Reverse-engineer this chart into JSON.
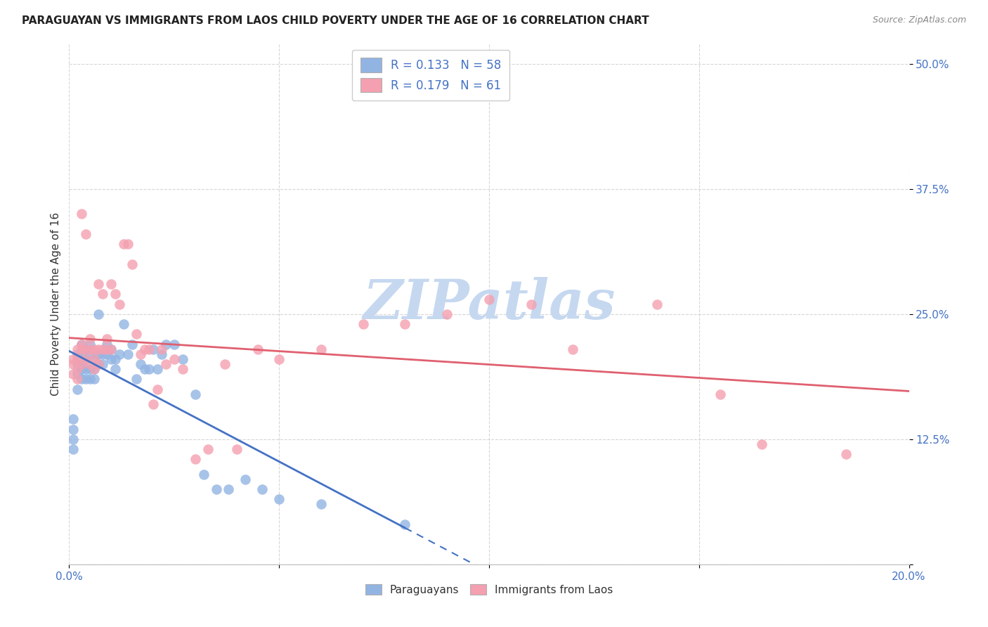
{
  "title": "PARAGUAYAN VS IMMIGRANTS FROM LAOS CHILD POVERTY UNDER THE AGE OF 16 CORRELATION CHART",
  "source": "Source: ZipAtlas.com",
  "ylabel": "Child Poverty Under the Age of 16",
  "xmin": 0.0,
  "xmax": 0.2,
  "ymin": 0.0,
  "ymax": 0.52,
  "r_paraguayan": 0.133,
  "n_paraguayan": 58,
  "r_laos": 0.179,
  "n_laos": 61,
  "legend_labels": [
    "Paraguayans",
    "Immigrants from Laos"
  ],
  "color_paraguayan": "#92b4e3",
  "color_laos": "#f4a0b0",
  "line_color_paraguayan": "#4472c4",
  "line_color_laos": "#e06070",
  "watermark_text": "ZIPatlas",
  "watermark_color": "#c5d8f0",
  "paraguayan_x": [
    0.001,
    0.001,
    0.001,
    0.001,
    0.002,
    0.002,
    0.002,
    0.002,
    0.003,
    0.003,
    0.003,
    0.003,
    0.003,
    0.004,
    0.004,
    0.004,
    0.004,
    0.005,
    0.005,
    0.005,
    0.005,
    0.006,
    0.006,
    0.006,
    0.007,
    0.007,
    0.007,
    0.008,
    0.008,
    0.009,
    0.009,
    0.01,
    0.01,
    0.011,
    0.011,
    0.012,
    0.013,
    0.014,
    0.015,
    0.016,
    0.017,
    0.018,
    0.019,
    0.02,
    0.021,
    0.022,
    0.023,
    0.025,
    0.027,
    0.03,
    0.032,
    0.035,
    0.038,
    0.042,
    0.046,
    0.05,
    0.06,
    0.08
  ],
  "paraguayan_y": [
    0.145,
    0.135,
    0.125,
    0.115,
    0.21,
    0.2,
    0.19,
    0.175,
    0.22,
    0.21,
    0.2,
    0.195,
    0.185,
    0.215,
    0.205,
    0.195,
    0.185,
    0.22,
    0.21,
    0.195,
    0.185,
    0.205,
    0.195,
    0.185,
    0.25,
    0.21,
    0.2,
    0.21,
    0.2,
    0.22,
    0.21,
    0.215,
    0.205,
    0.205,
    0.195,
    0.21,
    0.24,
    0.21,
    0.22,
    0.185,
    0.2,
    0.195,
    0.195,
    0.215,
    0.195,
    0.21,
    0.22,
    0.22,
    0.205,
    0.17,
    0.09,
    0.075,
    0.075,
    0.085,
    0.075,
    0.065,
    0.06,
    0.04
  ],
  "laos_x": [
    0.001,
    0.001,
    0.001,
    0.002,
    0.002,
    0.002,
    0.002,
    0.003,
    0.003,
    0.003,
    0.003,
    0.004,
    0.004,
    0.004,
    0.005,
    0.005,
    0.005,
    0.006,
    0.006,
    0.006,
    0.007,
    0.007,
    0.007,
    0.008,
    0.008,
    0.009,
    0.009,
    0.01,
    0.01,
    0.011,
    0.012,
    0.013,
    0.014,
    0.015,
    0.016,
    0.017,
    0.018,
    0.019,
    0.02,
    0.021,
    0.022,
    0.023,
    0.025,
    0.027,
    0.03,
    0.033,
    0.037,
    0.04,
    0.045,
    0.05,
    0.06,
    0.07,
    0.08,
    0.09,
    0.1,
    0.11,
    0.12,
    0.14,
    0.155,
    0.165,
    0.185
  ],
  "laos_y": [
    0.205,
    0.2,
    0.19,
    0.215,
    0.205,
    0.195,
    0.185,
    0.35,
    0.22,
    0.215,
    0.2,
    0.33,
    0.215,
    0.205,
    0.225,
    0.215,
    0.2,
    0.215,
    0.205,
    0.195,
    0.28,
    0.215,
    0.2,
    0.27,
    0.215,
    0.225,
    0.215,
    0.28,
    0.215,
    0.27,
    0.26,
    0.32,
    0.32,
    0.3,
    0.23,
    0.21,
    0.215,
    0.215,
    0.16,
    0.175,
    0.215,
    0.2,
    0.205,
    0.195,
    0.105,
    0.115,
    0.2,
    0.115,
    0.215,
    0.205,
    0.215,
    0.24,
    0.24,
    0.25,
    0.265,
    0.26,
    0.215,
    0.26,
    0.17,
    0.12,
    0.11
  ]
}
